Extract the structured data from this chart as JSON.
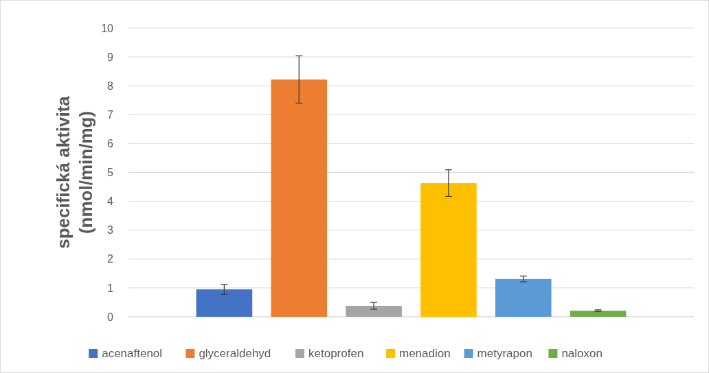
{
  "chart_data": {
    "type": "bar",
    "ylabel": "specifická aktivita (nmol/min/mg)",
    "categories": [
      null
    ],
    "series": [
      {
        "name": "acenaftenol",
        "color": "#4472c4",
        "values": [
          0.95
        ],
        "errors": [
          0.17
        ]
      },
      {
        "name": "glyceraldehyd",
        "color": "#ed7d31",
        "values": [
          8.22
        ],
        "errors": [
          0.82
        ]
      },
      {
        "name": "ketoprofen",
        "color": "#a5a5a5",
        "values": [
          0.38
        ],
        "errors": [
          0.12
        ]
      },
      {
        "name": "menadion",
        "color": "#ffc000",
        "values": [
          4.63
        ],
        "errors": [
          0.46
        ]
      },
      {
        "name": "metyrapon",
        "color": "#5b9bd5",
        "values": [
          1.31
        ],
        "errors": [
          0.1
        ]
      },
      {
        "name": "naloxon",
        "color": "#70ad47",
        "values": [
          0.21
        ],
        "errors": [
          0.03
        ]
      }
    ],
    "ylim": [
      0,
      10
    ],
    "yticks": [
      0,
      1,
      2,
      3,
      4,
      5,
      6,
      7,
      8,
      9,
      10
    ],
    "grid": "y",
    "legend": "bottom"
  }
}
